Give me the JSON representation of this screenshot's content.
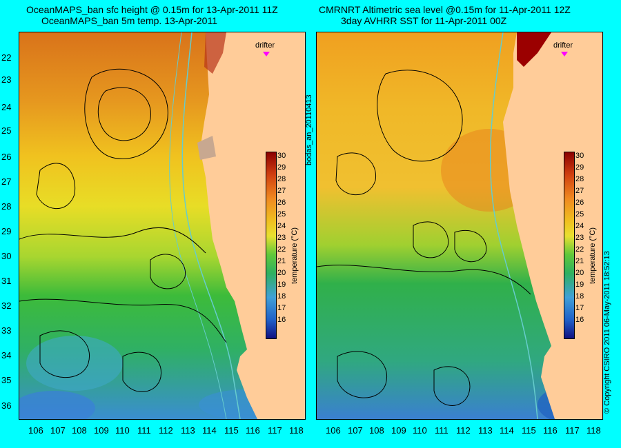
{
  "left_panel": {
    "title_line1": "OceanMAPS_ban sfc height @ 0.15m for 13-Apr-2011 11Z",
    "title_line2": "OceanMAPS_ban 5m temp. 13-Apr-2011",
    "drifter_label": "drifter",
    "colorbar_label": "temperature (°C)"
  },
  "right_panel": {
    "title_line1": "CMRNRT Altimetric sea level  @0.15m  for 11-Apr-2011 12Z",
    "title_line2": "3day AVHRR SST for 11-Apr-2011 00Z",
    "drifter_label": "drifter",
    "colorbar_label": "temperature (°C)"
  },
  "middle_text": "bodas_an_20110413",
  "copyright": "© Copyright CSIRO 2011  06-May-2011 18:52:13",
  "lat_ticks": [
    "22",
    "23",
    "24",
    "25",
    "26",
    "27",
    "28",
    "29",
    "30",
    "31",
    "32",
    "33",
    "34",
    "35",
    "36"
  ],
  "lon_ticks": [
    "106",
    "107",
    "108",
    "109",
    "110",
    "111",
    "112",
    "113",
    "114",
    "115",
    "116",
    "117",
    "118"
  ],
  "colorbar_ticks": [
    "30",
    "29",
    "28",
    "27",
    "26",
    "25",
    "24",
    "23",
    "22",
    "21",
    "20",
    "19",
    "18",
    "17",
    "16"
  ],
  "colors": {
    "background": "#00ffff",
    "land": "#ffcc99",
    "drifter": "#ff00ff",
    "contour": "#000000",
    "isobath": "#66cccc"
  }
}
